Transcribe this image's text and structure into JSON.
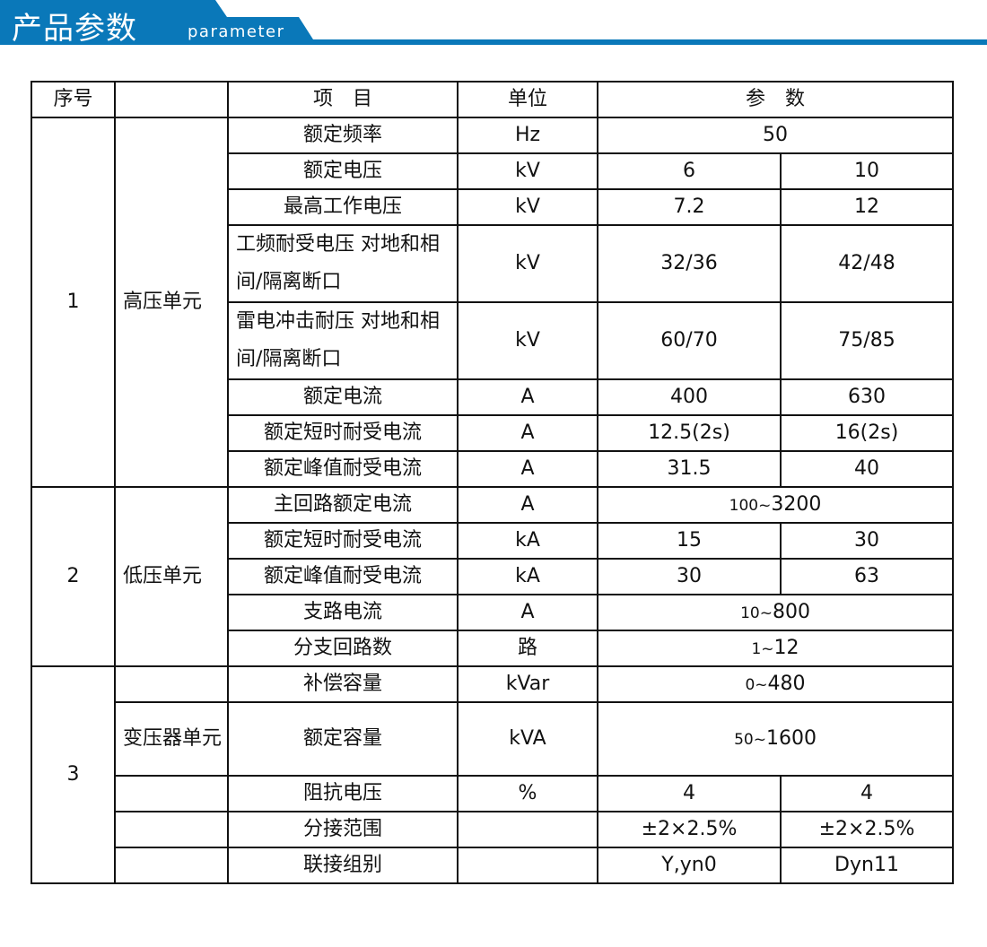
{
  "header": {
    "title": "产品参数",
    "subtitle": "parameter",
    "color": "#0a78b9"
  },
  "table": {
    "columns": [
      "序号",
      "",
      "项　目",
      "单位",
      "参　数"
    ],
    "sections": [
      {
        "no": "1",
        "unit_group": "高压单元",
        "rows": [
          {
            "item": "额定频率",
            "unit": "Hz",
            "merged": "50"
          },
          {
            "item": "额定电压",
            "unit": "kV",
            "v1": "6",
            "v2": "10"
          },
          {
            "item": "最高工作电压",
            "unit": "kV",
            "v1": "7.2",
            "v2": "12"
          },
          {
            "item": "工频耐受电压 对地和相间/隔离断口",
            "unit": "kV",
            "v1": "32/36",
            "v2": "42/48",
            "tall": true
          },
          {
            "item": "雷电冲击耐压 对地和相间/隔离断口",
            "unit": "kV",
            "v1": "60/70",
            "v2": "75/85",
            "tall": true
          },
          {
            "item": "额定电流",
            "unit": "A",
            "v1": "400",
            "v2": "630"
          },
          {
            "item": "额定短时耐受电流",
            "unit": "A",
            "v1": "12.5(2s)",
            "v2": "16(2s)"
          },
          {
            "item": "额定峰值耐受电流",
            "unit": "A",
            "v1": "31.5",
            "v2": "40"
          }
        ]
      },
      {
        "no": "2",
        "unit_group": "低压单元",
        "rows": [
          {
            "item": "主回路额定电流",
            "unit": "A",
            "range": {
              "lo": "100",
              "sep": "~",
              "hi": "3200"
            }
          },
          {
            "item": "额定短时耐受电流",
            "unit": "kA",
            "v1": "15",
            "v2": "30"
          },
          {
            "item": "额定峰值耐受电流",
            "unit": "kA",
            "v1": "30",
            "v2": "63"
          },
          {
            "item": "支路电流",
            "unit": "A",
            "range": {
              "lo": "10",
              "sep": "~",
              "hi": "800"
            }
          },
          {
            "item": "分支回路数",
            "unit": "路",
            "range": {
              "lo": "1",
              "sep": "~",
              "hi": "12"
            }
          }
        ]
      },
      {
        "no": "3",
        "unit_group": "变压器单元",
        "rows": [
          {
            "item": "补偿容量",
            "unit": "kVar",
            "range": {
              "lo": "0",
              "sep": "~",
              "hi": "480"
            }
          },
          {
            "item": "额定容量",
            "unit": "kVA",
            "range": {
              "lo": "50",
              "sep": "~",
              "hi": "1600"
            },
            "tall": true
          },
          {
            "item": "阻抗电压",
            "unit": "%",
            "v1": "4",
            "v2": "4"
          },
          {
            "item": "分接范围",
            "unit": "",
            "v1": "±2×2.5%",
            "v2": "±2×2.5%"
          },
          {
            "item": "联接组别",
            "unit": "",
            "v1": "Y,yn0",
            "v2": "Dyn11"
          }
        ]
      }
    ]
  }
}
